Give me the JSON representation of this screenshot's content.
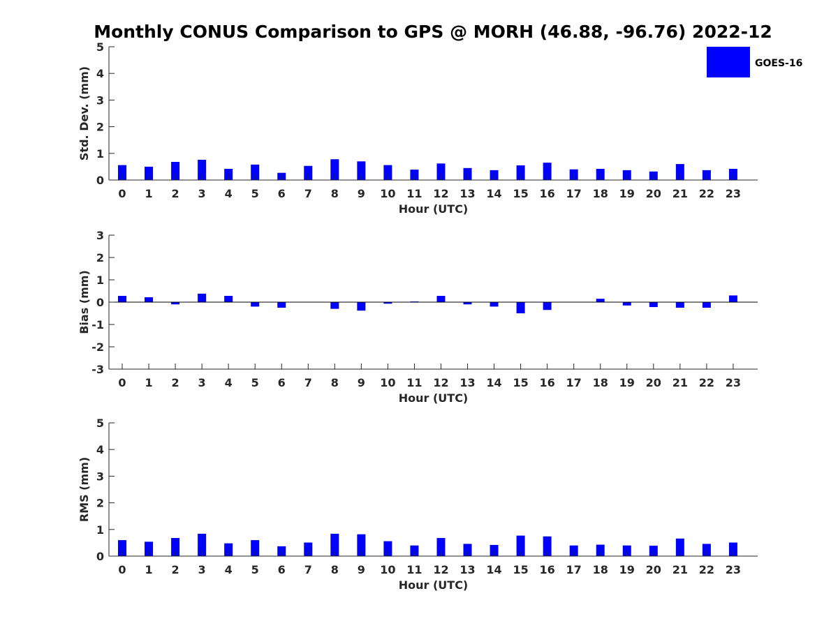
{
  "title": "Monthly CONUS Comparison to GPS @ MORH (46.88, -96.76) 2022-12",
  "legend": {
    "label": "GOES-16",
    "color": "#0000ff"
  },
  "colors": {
    "bar": "#0000ff",
    "axis": "#262626"
  },
  "chart_data": [
    {
      "type": "bar",
      "title": "Monthly CONUS Comparison to GPS @ MORH (46.88, -96.76) 2022-12",
      "xlabel": "Hour (UTC)",
      "ylabel": "Std. Dev. (mm)",
      "ylim": [
        0,
        5
      ],
      "yticks": [
        0,
        1,
        2,
        3,
        4,
        5
      ],
      "categories": [
        "0",
        "1",
        "2",
        "3",
        "4",
        "5",
        "6",
        "7",
        "8",
        "9",
        "10",
        "11",
        "12",
        "13",
        "14",
        "15",
        "16",
        "17",
        "18",
        "19",
        "20",
        "21",
        "22",
        "23"
      ],
      "series": [
        {
          "name": "GOES-16",
          "values": [
            0.56,
            0.5,
            0.68,
            0.76,
            0.42,
            0.58,
            0.27,
            0.53,
            0.78,
            0.7,
            0.56,
            0.39,
            0.62,
            0.45,
            0.37,
            0.55,
            0.65,
            0.4,
            0.42,
            0.37,
            0.32,
            0.6,
            0.37,
            0.42
          ]
        }
      ],
      "legend": "top-right",
      "grid": false
    },
    {
      "type": "bar",
      "xlabel": "Hour (UTC)",
      "ylabel": "Bias (mm)",
      "ylim": [
        -3,
        3
      ],
      "yticks": [
        -3,
        -2,
        -1,
        0,
        1,
        2,
        3
      ],
      "categories": [
        "0",
        "1",
        "2",
        "3",
        "4",
        "5",
        "6",
        "7",
        "8",
        "9",
        "10",
        "11",
        "12",
        "13",
        "14",
        "15",
        "16",
        "17",
        "18",
        "19",
        "20",
        "21",
        "22",
        "23"
      ],
      "series": [
        {
          "name": "GOES-16",
          "values": [
            0.28,
            0.22,
            -0.1,
            0.38,
            0.28,
            -0.2,
            -0.25,
            0.0,
            -0.3,
            -0.38,
            -0.07,
            0.03,
            0.28,
            -0.1,
            -0.2,
            -0.5,
            -0.35,
            0.0,
            0.15,
            -0.15,
            -0.22,
            -0.25,
            -0.25,
            0.3
          ]
        }
      ],
      "grid": false
    },
    {
      "type": "bar",
      "xlabel": "Hour (UTC)",
      "ylabel": "RMS (mm)",
      "ylim": [
        0,
        5
      ],
      "yticks": [
        0,
        1,
        2,
        3,
        4,
        5
      ],
      "categories": [
        "0",
        "1",
        "2",
        "3",
        "4",
        "5",
        "6",
        "7",
        "8",
        "9",
        "10",
        "11",
        "12",
        "13",
        "14",
        "15",
        "16",
        "17",
        "18",
        "19",
        "20",
        "21",
        "22",
        "23"
      ],
      "series": [
        {
          "name": "GOES-16",
          "values": [
            0.6,
            0.54,
            0.68,
            0.84,
            0.48,
            0.6,
            0.37,
            0.51,
            0.84,
            0.82,
            0.56,
            0.4,
            0.68,
            0.46,
            0.42,
            0.77,
            0.74,
            0.4,
            0.43,
            0.4,
            0.39,
            0.66,
            0.46,
            0.51
          ]
        }
      ],
      "grid": false
    }
  ]
}
